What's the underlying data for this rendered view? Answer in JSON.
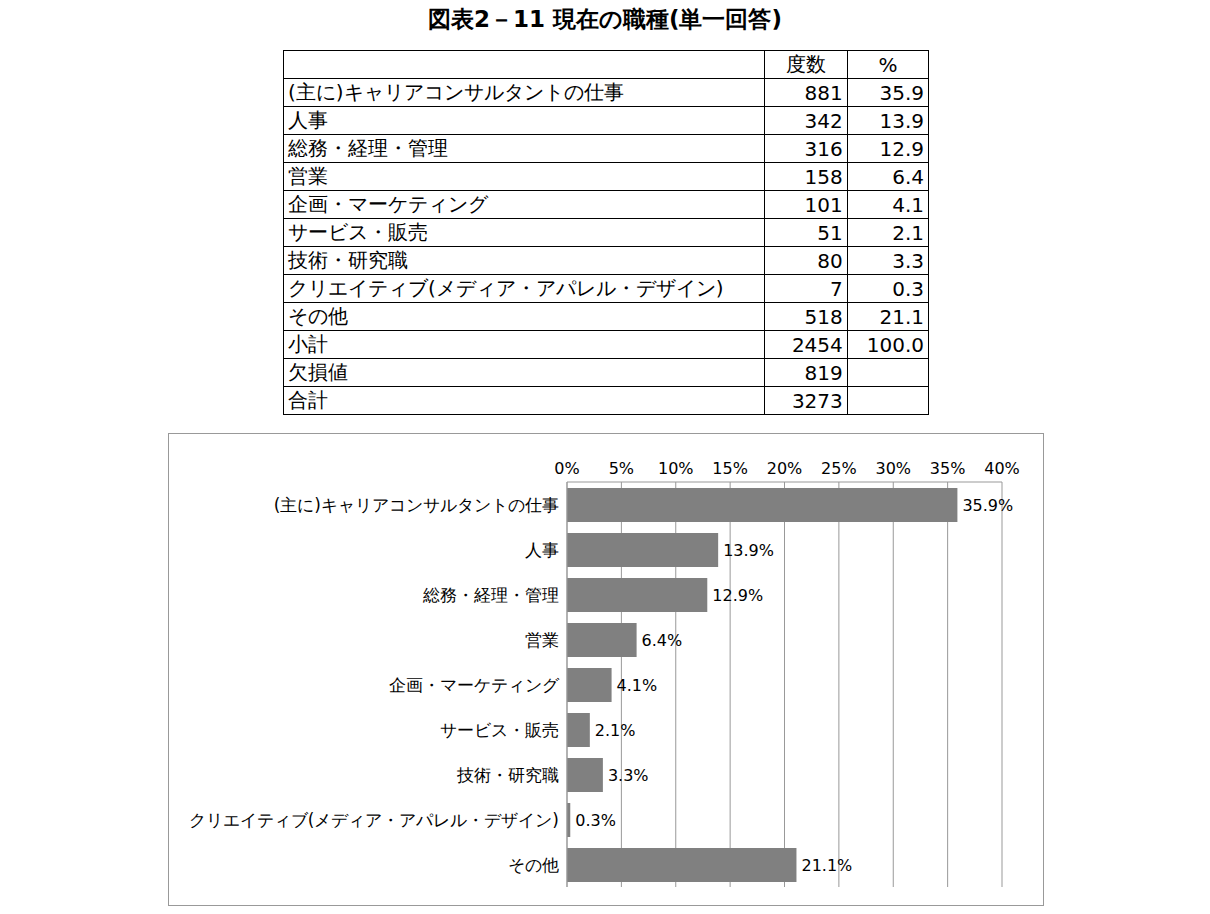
{
  "title": "図表2－11 現在の職種(単一回答)",
  "table": {
    "header": [
      null,
      "度数",
      "%"
    ],
    "rows": [
      [
        "(主に)キャリアコンサルタントの仕事",
        "881",
        "35.9"
      ],
      [
        "人事",
        "342",
        "13.9"
      ],
      [
        "総務・経理・管理",
        "316",
        "12.9"
      ],
      [
        "営業",
        "158",
        "6.4"
      ],
      [
        "企画・マーケティング",
        "101",
        "4.1"
      ],
      [
        "サービス・販売",
        "51",
        "2.1"
      ],
      [
        "技術・研究職",
        "80",
        "3.3"
      ],
      [
        "クリエイティブ(メディア・アパレル・デザイン)",
        "7",
        "0.3"
      ],
      [
        "その他",
        "518",
        "21.1"
      ],
      [
        "小計",
        "2454",
        "100.0"
      ],
      [
        "欠損値",
        "819",
        null
      ],
      [
        "合計",
        "3273",
        null
      ]
    ]
  },
  "chart_data": {
    "type": "bar",
    "orientation": "horizontal",
    "categories": [
      "(主に)キャリアコンサルタントの仕事",
      "人事",
      "総務・経理・管理",
      "営業",
      "企画・マーケティング",
      "サービス・販売",
      "技術・研究職",
      "クリエイティブ(メディア・アパレル・デザイン)",
      "その他"
    ],
    "values": [
      35.9,
      13.9,
      12.9,
      6.4,
      4.1,
      2.1,
      3.3,
      0.3,
      21.1
    ],
    "value_labels": [
      "35.9%",
      "13.9%",
      "12.9%",
      "6.4%",
      "4.1%",
      "2.1%",
      "3.3%",
      "0.3%",
      "21.1%"
    ],
    "color": "#808080",
    "xlim": [
      0,
      40
    ],
    "xticks": [
      {
        "value": 0,
        "label": "0%"
      },
      {
        "value": 5,
        "label": "5%"
      },
      {
        "value": 10,
        "label": "10%"
      },
      {
        "value": 15,
        "label": "15%"
      },
      {
        "value": 20,
        "label": "20%"
      },
      {
        "value": 25,
        "label": "25%"
      },
      {
        "value": 30,
        "label": "30%"
      },
      {
        "value": 35,
        "label": "35%"
      },
      {
        "value": 40,
        "label": "40%"
      }
    ],
    "grid": true,
    "data_labels": true
  }
}
